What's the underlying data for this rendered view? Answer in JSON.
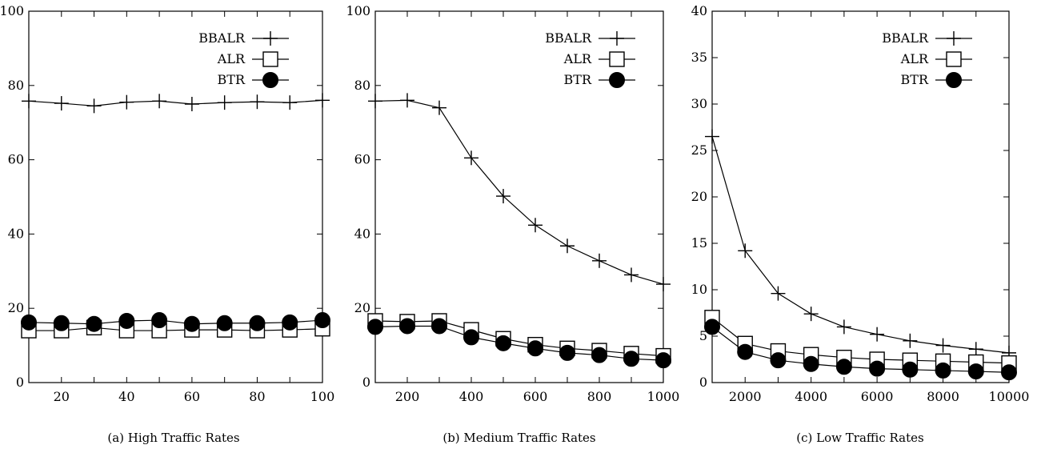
{
  "chart_data": [
    {
      "type": "line",
      "caption": "(a) High Traffic Rates",
      "xlim": [
        10,
        100
      ],
      "ylim": [
        0,
        100
      ],
      "xticks": [
        20,
        40,
        60,
        80,
        100
      ],
      "yticks": [
        0,
        20,
        40,
        60,
        80,
        100
      ],
      "x": [
        10,
        20,
        30,
        40,
        50,
        60,
        70,
        80,
        90,
        100
      ],
      "legend_position": "top-right",
      "series": [
        {
          "name": "BBALR",
          "marker": "plus",
          "values": [
            75.8,
            75.2,
            74.5,
            75.5,
            75.8,
            75.0,
            75.4,
            75.6,
            75.4,
            76.0
          ]
        },
        {
          "name": "ALR",
          "marker": "square",
          "values": [
            14.0,
            14.0,
            14.8,
            14.0,
            14.0,
            14.2,
            14.2,
            14.0,
            14.2,
            14.5
          ]
        },
        {
          "name": "BTR",
          "marker": "circle",
          "values": [
            16.2,
            16.0,
            15.8,
            16.6,
            16.8,
            15.8,
            16.0,
            16.0,
            16.2,
            16.8
          ]
        }
      ]
    },
    {
      "type": "line",
      "caption": "(b) Medium Traffic Rates",
      "xlim": [
        100,
        1000
      ],
      "ylim": [
        0,
        100
      ],
      "xticks": [
        200,
        400,
        600,
        800,
        1000
      ],
      "yticks": [
        0,
        20,
        40,
        60,
        80,
        100
      ],
      "x": [
        100,
        200,
        300,
        400,
        500,
        600,
        700,
        800,
        900,
        1000
      ],
      "legend_position": "top-right",
      "series": [
        {
          "name": "BBALR",
          "marker": "plus",
          "values": [
            75.8,
            76.0,
            74.0,
            60.5,
            50.2,
            42.4,
            36.8,
            32.8,
            29.0,
            26.5
          ]
        },
        {
          "name": "ALR",
          "marker": "square",
          "values": [
            16.6,
            16.4,
            16.6,
            14.2,
            11.8,
            10.2,
            9.2,
            8.6,
            7.8,
            7.2
          ]
        },
        {
          "name": "BTR",
          "marker": "circle",
          "values": [
            15.0,
            15.2,
            15.2,
            12.2,
            10.6,
            9.2,
            8.0,
            7.4,
            6.4,
            6.0
          ]
        }
      ]
    },
    {
      "type": "line",
      "caption": "(c) Low Traffic Rates",
      "xlim": [
        1000,
        10000
      ],
      "ylim": [
        0,
        40
      ],
      "xticks": [
        2000,
        4000,
        6000,
        8000,
        10000
      ],
      "yticks": [
        0,
        5,
        10,
        15,
        20,
        25,
        30,
        35,
        40
      ],
      "x": [
        1000,
        2000,
        3000,
        4000,
        5000,
        6000,
        7000,
        8000,
        9000,
        10000
      ],
      "legend_position": "top-right",
      "series": [
        {
          "name": "BBALR",
          "marker": "plus",
          "values": [
            26.5,
            14.2,
            9.6,
            7.4,
            6.0,
            5.2,
            4.5,
            4.0,
            3.6,
            3.2
          ]
        },
        {
          "name": "ALR",
          "marker": "square",
          "values": [
            7.0,
            4.2,
            3.4,
            3.0,
            2.7,
            2.5,
            2.4,
            2.3,
            2.2,
            2.1
          ]
        },
        {
          "name": "BTR",
          "marker": "circle",
          "values": [
            6.0,
            3.3,
            2.4,
            2.0,
            1.7,
            1.5,
            1.4,
            1.3,
            1.2,
            1.1
          ]
        }
      ]
    }
  ]
}
